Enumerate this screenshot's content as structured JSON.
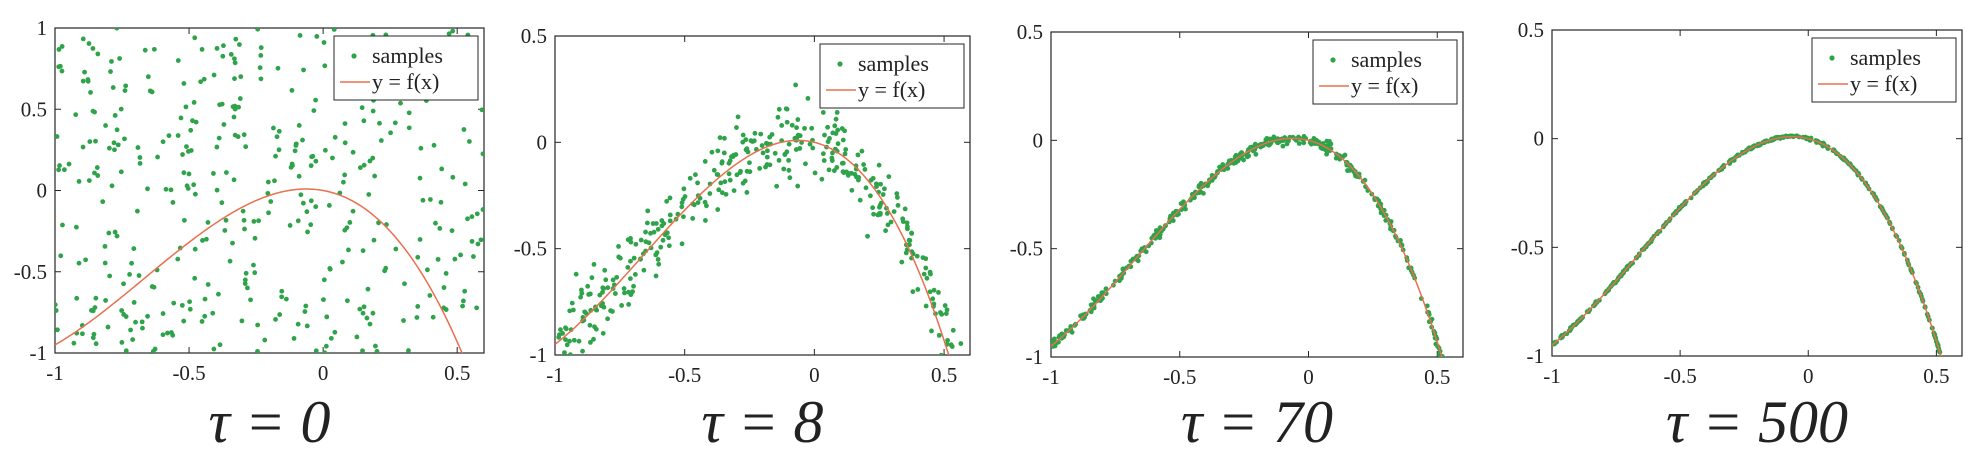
{
  "chart_data": [
    {
      "type": "scatter",
      "xlim": [
        -1,
        0.6
      ],
      "ylim": [
        -1,
        1
      ],
      "xticks": [
        "-1",
        "-0.5",
        "0",
        "0.5"
      ],
      "yticks": [
        "1",
        "0.5",
        "0",
        "-0.5",
        "-1"
      ],
      "caption": "τ = 0",
      "legend": {
        "placement": "top-right",
        "entries": [
          "samples",
          "y = f(x)"
        ]
      },
      "series": [
        {
          "name": "samples",
          "kind": "points",
          "color": "#2ea34a",
          "noise": "uniform over [-1, 1]",
          "count": 400
        },
        {
          "name": "y = f(x)",
          "kind": "line",
          "color": "#e8704f"
        }
      ]
    },
    {
      "type": "scatter",
      "xlim": [
        -1,
        0.6
      ],
      "ylim": [
        -1,
        0.5
      ],
      "xticks": [
        "-1",
        "-0.5",
        "0",
        "0.5"
      ],
      "yticks": [
        "0.5",
        "0",
        "-0.5",
        "-1"
      ],
      "caption": "τ = 8",
      "legend": {
        "placement": "top-right",
        "entries": [
          "samples",
          "y = f(x)"
        ]
      },
      "series": [
        {
          "name": "samples",
          "kind": "points",
          "color": "#2ea34a",
          "noise_sd": 0.09,
          "count": 400
        },
        {
          "name": "y = f(x)",
          "kind": "line",
          "color": "#e8704f"
        }
      ]
    },
    {
      "type": "scatter",
      "xlim": [
        -1,
        0.6
      ],
      "ylim": [
        -1,
        0.5
      ],
      "xticks": [
        "-1",
        "-0.5",
        "0",
        "0.5"
      ],
      "yticks": [
        "0.5",
        "0",
        "-0.5",
        "-1"
      ],
      "caption": "τ = 70",
      "legend": {
        "placement": "top-right",
        "entries": [
          "samples",
          "y = f(x)"
        ]
      },
      "series": [
        {
          "name": "samples",
          "kind": "points",
          "color": "#2ea34a",
          "noise_sd": 0.012,
          "count": 400
        },
        {
          "name": "y = f(x)",
          "kind": "line",
          "color": "#e8704f"
        }
      ]
    },
    {
      "type": "scatter",
      "xlim": [
        -1,
        0.6
      ],
      "ylim": [
        -1,
        0.5
      ],
      "xticks": [
        "-1",
        "-0.5",
        "0",
        "0.5"
      ],
      "yticks": [
        "0.5",
        "0",
        "-0.5",
        "-1"
      ],
      "caption": "τ = 500",
      "legend": {
        "placement": "top-right",
        "entries": [
          "samples",
          "y = f(x)"
        ]
      },
      "series": [
        {
          "name": "samples",
          "kind": "points",
          "color": "#2ea34a",
          "noise_sd": 0.003,
          "count": 400
        },
        {
          "name": "y = f(x)",
          "kind": "line",
          "color": "#e8704f"
        }
      ]
    }
  ]
}
